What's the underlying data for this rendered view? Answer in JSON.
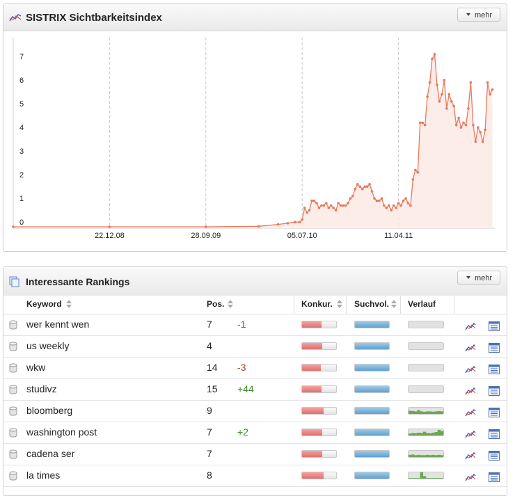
{
  "chart_panel": {
    "title": "SISTRIX Sichtbarkeitsindex",
    "button": "mehr"
  },
  "chart_data": {
    "type": "line",
    "x": [
      "17.03.08",
      "22.12.08",
      "28.09.09",
      "01.03.10",
      "26.04.10",
      "24.05.10",
      "14.06.10",
      "28.06.10",
      "05.07.10",
      "12.07.10",
      "19.07.10",
      "26.07.10",
      "02.08.10",
      "09.08.10",
      "16.08.10",
      "23.08.10",
      "30.08.10",
      "06.09.10",
      "13.09.10",
      "20.09.10",
      "27.09.10",
      "04.10.10",
      "11.10.10",
      "18.10.10",
      "25.10.10",
      "01.11.10",
      "08.11.10",
      "15.11.10",
      "22.11.10",
      "29.11.10",
      "06.12.10",
      "13.12.10",
      "20.12.10",
      "27.12.10",
      "03.01.11",
      "10.01.11",
      "17.01.11",
      "24.01.11",
      "31.01.11",
      "07.02.11",
      "14.02.11",
      "21.02.11",
      "28.02.11",
      "07.03.11",
      "14.03.11",
      "21.03.11",
      "28.03.11",
      "04.04.11",
      "11.04.11",
      "18.04.11",
      "25.04.11",
      "02.05.11",
      "09.05.11",
      "16.05.11",
      "23.05.11",
      "30.05.11",
      "06.06.11",
      "13.06.11",
      "20.06.11",
      "27.06.11",
      "04.07.11",
      "11.07.11",
      "18.07.11",
      "25.07.11",
      "01.08.11",
      "08.08.11",
      "15.08.11",
      "22.08.11",
      "29.08.11",
      "05.09.11",
      "12.09.11",
      "19.09.11",
      "26.09.11",
      "03.10.11",
      "10.10.11",
      "17.10.11",
      "24.10.11",
      "31.10.11",
      "07.11.11",
      "14.11.11",
      "21.11.11",
      "28.11.11",
      "05.12.11",
      "12.12.11",
      "19.12.11",
      "26.12.11",
      "02.01.12",
      "09.01.12"
    ],
    "values": [
      0,
      0,
      0,
      0.02,
      0.1,
      0.15,
      0.2,
      0.2,
      0.3,
      0.8,
      0.6,
      0.7,
      1.1,
      1.1,
      1.0,
      0.8,
      0.9,
      0.9,
      1.0,
      0.8,
      0.9,
      0.8,
      0.7,
      1.0,
      0.9,
      0.9,
      0.9,
      1.0,
      1.2,
      1.3,
      1.6,
      1.8,
      1.7,
      1.6,
      1.7,
      1.7,
      1.8,
      1.5,
      1.2,
      1.1,
      1.1,
      1.2,
      0.9,
      0.8,
      0.9,
      0.7,
      0.9,
      0.8,
      1.0,
      0.9,
      1.1,
      1.2,
      1.0,
      0.9,
      2.0,
      2.4,
      2.3,
      4.4,
      4.4,
      4.3,
      5.5,
      6.1,
      7.1,
      7.3,
      6.0,
      5.3,
      5.6,
      6.2,
      5.0,
      5.6,
      5.3,
      5.1,
      4.3,
      4.6,
      4.2,
      4.4,
      4.3,
      5.0,
      6.1,
      4.3,
      3.6,
      4.2,
      4.0,
      3.6,
      4.1,
      6.1,
      5.6,
      5.8
    ],
    "color": "#e8795d",
    "xlim": [
      "17.03.08",
      "16.01.12"
    ],
    "xticks": [
      "22.12.08",
      "28.09.09",
      "05.07.10",
      "11.04.11"
    ],
    "ylim": [
      0,
      8
    ],
    "yticks": [
      0,
      1,
      2,
      3,
      4,
      5,
      6,
      7
    ],
    "grid": "x"
  },
  "rankings": {
    "title": "Interessante Rankings",
    "button": "mehr",
    "columns": [
      "Keyword",
      "Pos.",
      "Konkur.",
      "Suchvol.",
      "Verlauf"
    ],
    "rows": [
      {
        "keyword": "wer kennt wen",
        "position": 7,
        "change": "-1",
        "competition": 57,
        "volume": 100,
        "history": [
          0,
          0,
          0,
          0,
          0,
          0,
          0,
          0,
          0,
          0,
          0,
          0
        ]
      },
      {
        "keyword": "us weekly",
        "position": 4,
        "competition": 60,
        "volume": 100,
        "history": [
          0,
          0,
          0,
          0,
          0,
          0,
          0,
          0,
          0,
          0,
          0,
          0
        ]
      },
      {
        "keyword": "wkw",
        "position": 14,
        "change": "-3",
        "competition": 55,
        "volume": 100,
        "history": [
          0,
          0,
          0,
          0,
          0,
          0,
          0,
          0,
          0,
          0,
          0,
          0
        ]
      },
      {
        "keyword": "studivz",
        "position": 15,
        "change": "+44",
        "competition": 57,
        "volume": 100,
        "history": [
          0,
          0,
          0,
          0,
          0,
          0,
          0,
          0,
          0,
          0,
          0,
          0
        ]
      },
      {
        "keyword": "bloomberg",
        "position": 9,
        "competition": 63,
        "volume": 100,
        "history": [
          50,
          45,
          40,
          60,
          40,
          35,
          40,
          40,
          35,
          40,
          45,
          40
        ]
      },
      {
        "keyword": "washington post",
        "position": 7,
        "change": "+2",
        "competition": 60,
        "volume": 100,
        "history": [
          30,
          40,
          35,
          45,
          40,
          60,
          40,
          35,
          45,
          55,
          90,
          70
        ]
      },
      {
        "keyword": "cadena ser",
        "position": 7,
        "competition": 60,
        "volume": 100,
        "history": [
          35,
          40,
          30,
          35,
          30,
          30,
          35,
          30,
          35,
          30,
          35,
          30
        ]
      },
      {
        "keyword": "la times",
        "position": 8,
        "competition": 63,
        "volume": 100,
        "history": [
          10,
          10,
          10,
          10,
          100,
          40,
          10,
          10,
          10,
          10,
          10,
          10
        ]
      }
    ]
  }
}
